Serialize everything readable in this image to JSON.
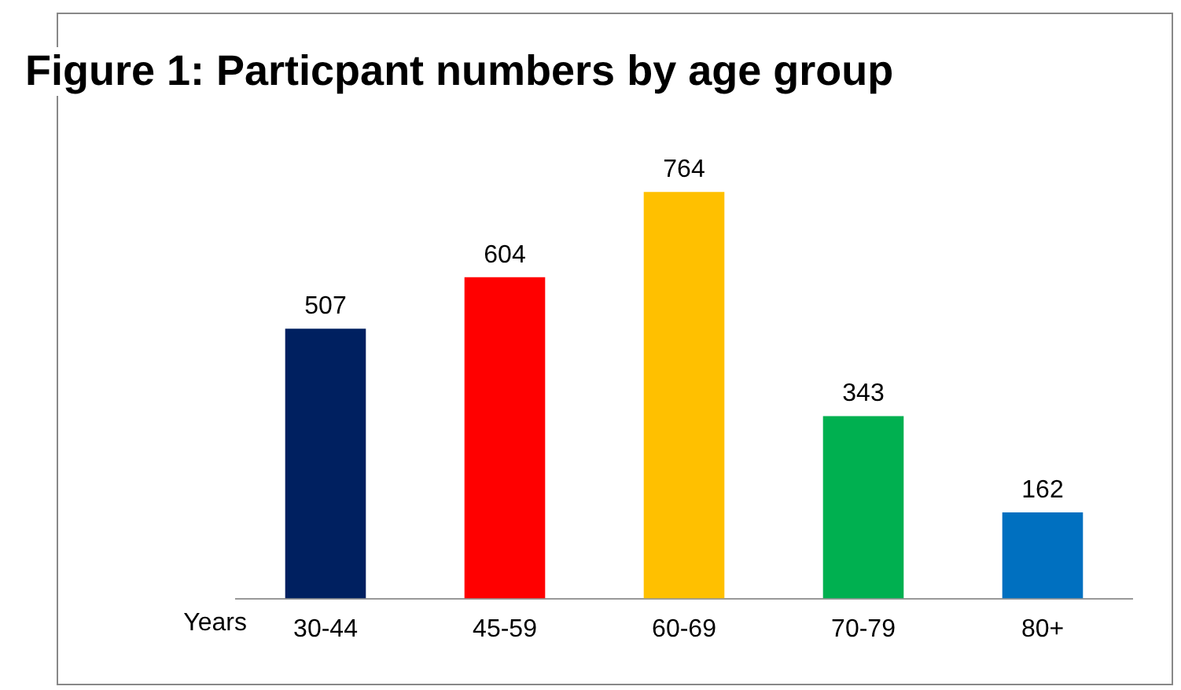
{
  "chart_data": {
    "type": "bar",
    "title": "Figure 1: Particpant numbers by age group",
    "xlabel": "Years",
    "categories": [
      "30-44",
      "45-59",
      "60-69",
      "70-79",
      "80+"
    ],
    "values": [
      507,
      604,
      764,
      343,
      162
    ],
    "colors": [
      "#002060",
      "#ff0000",
      "#ffc000",
      "#00b050",
      "#0070c0"
    ],
    "data_labels": true,
    "grid": false,
    "legend": false
  }
}
